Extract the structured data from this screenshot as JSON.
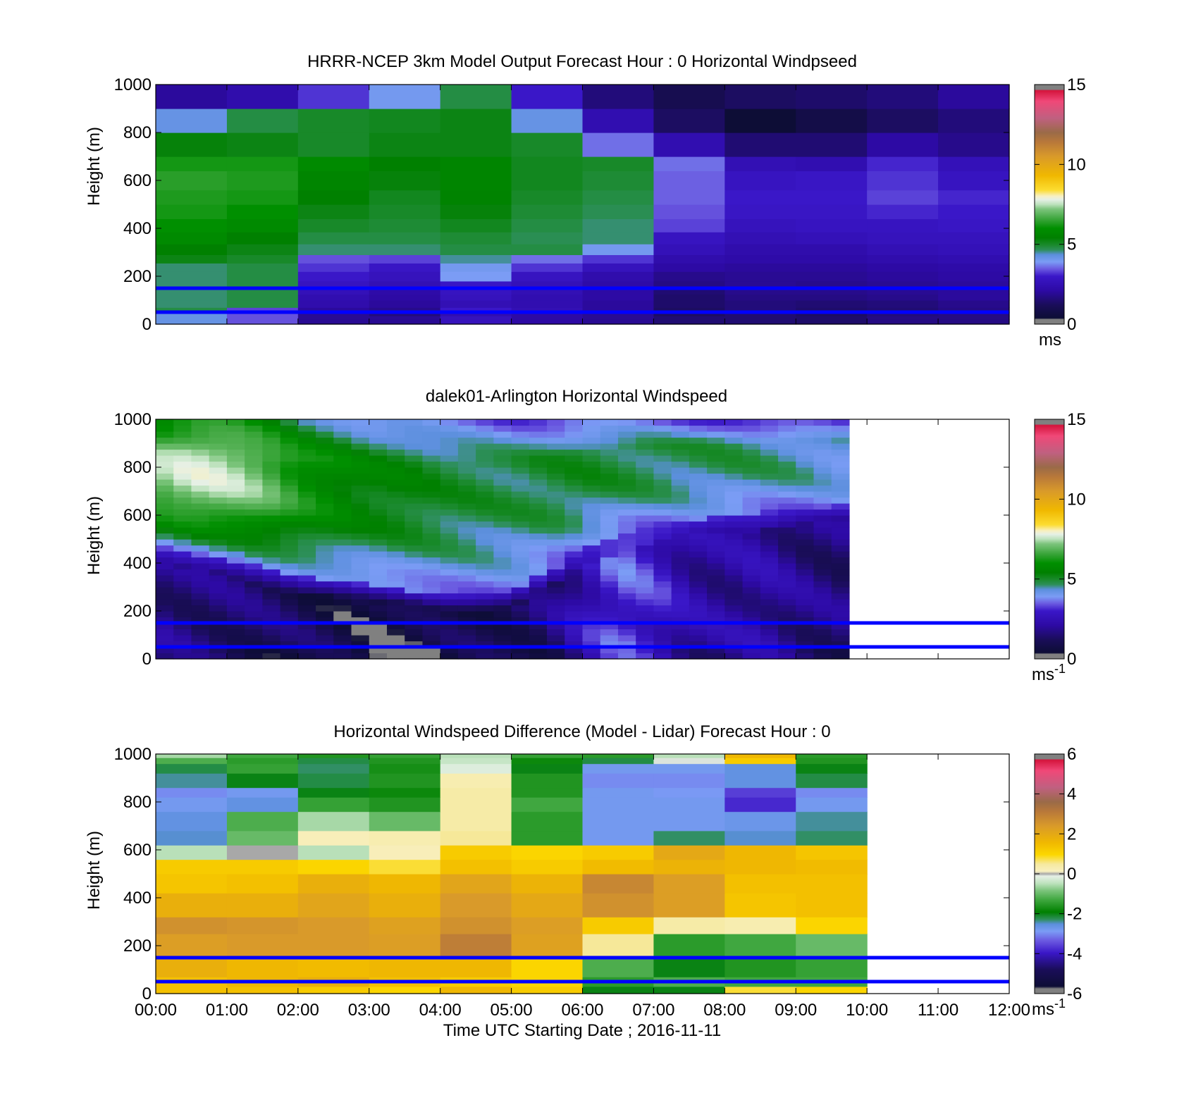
{
  "figure": {
    "xlabel": "Time UTC  Starting Date ; 2016-11-11",
    "x_ticks": [
      "00:00",
      "01:00",
      "02:00",
      "03:00",
      "04:00",
      "05:00",
      "06:00",
      "07:00",
      "08:00",
      "09:00",
      "10:00",
      "11:00",
      "12:00"
    ],
    "reference_line_color": "#0000ff",
    "reference_lines_height_m": [
      150,
      50
    ]
  },
  "speed_colorscale": {
    "stops": [
      [
        0.0,
        "#808080"
      ],
      [
        0.02,
        "#808080"
      ],
      [
        0.025,
        "#0d0d35"
      ],
      [
        0.08,
        "#1a0d59"
      ],
      [
        0.14,
        "#2d0aa4"
      ],
      [
        0.2,
        "#3a17c8"
      ],
      [
        0.23,
        "#6a58e0"
      ],
      [
        0.26,
        "#7b9cf5"
      ],
      [
        0.29,
        "#5b8fdc"
      ],
      [
        0.31,
        "#2d8f5a"
      ],
      [
        0.33,
        "#1b8a2e"
      ],
      [
        0.36,
        "#008000"
      ],
      [
        0.4,
        "#008f00"
      ],
      [
        0.44,
        "#3da63d"
      ],
      [
        0.48,
        "#7cc47c"
      ],
      [
        0.5,
        "#bde2bd"
      ],
      [
        0.52,
        "#e6f0e6"
      ],
      [
        0.535,
        "#f8f0c0"
      ],
      [
        0.56,
        "#fcdc30"
      ],
      [
        0.62,
        "#f0b800"
      ],
      [
        0.7,
        "#d99a2a"
      ],
      [
        0.76,
        "#b8783a"
      ],
      [
        0.8,
        "#9a6a48"
      ],
      [
        0.86,
        "#c06080"
      ],
      [
        0.93,
        "#f04878"
      ],
      [
        0.975,
        "#d4143c"
      ],
      [
        0.98,
        "#808080"
      ],
      [
        1.0,
        "#808080"
      ]
    ]
  },
  "diff_colorscale": {
    "stops": [
      [
        0.0,
        "#808080"
      ],
      [
        0.02,
        "#808080"
      ],
      [
        0.03,
        "#0d0d35"
      ],
      [
        0.1,
        "#1a0d59"
      ],
      [
        0.17,
        "#3a17c8"
      ],
      [
        0.22,
        "#6a58e0"
      ],
      [
        0.26,
        "#7b9cf5"
      ],
      [
        0.29,
        "#5b8fdc"
      ],
      [
        0.31,
        "#2d8f5a"
      ],
      [
        0.34,
        "#008000"
      ],
      [
        0.39,
        "#3da63d"
      ],
      [
        0.43,
        "#7cc47c"
      ],
      [
        0.46,
        "#bde2bd"
      ],
      [
        0.49,
        "#e6f0e6"
      ],
      [
        0.5,
        "#a8a8a8"
      ],
      [
        0.51,
        "#f8f0c0"
      ],
      [
        0.54,
        "#f6e9a0"
      ],
      [
        0.58,
        "#fcd700"
      ],
      [
        0.63,
        "#f0b800"
      ],
      [
        0.7,
        "#d99a2a"
      ],
      [
        0.76,
        "#b8783a"
      ],
      [
        0.8,
        "#9a6a48"
      ],
      [
        0.86,
        "#c06080"
      ],
      [
        0.93,
        "#f04878"
      ],
      [
        0.975,
        "#d4143c"
      ],
      [
        0.98,
        "#808080"
      ],
      [
        1.0,
        "#808080"
      ]
    ]
  },
  "chart_data": [
    {
      "type": "heatmap",
      "title": "HRRR-NCEP 3km Model Output   Forecast Hour : 0 Horizontal Windpseed",
      "ylabel": "Height (m)",
      "xlim": [
        "00:00",
        "12:00"
      ],
      "ylim": [
        0,
        1000
      ],
      "y_ticks": [
        0,
        200,
        400,
        600,
        800,
        1000
      ],
      "x_step_hours": 1,
      "x_starts": [
        "00:00",
        "01:00",
        "02:00",
        "03:00",
        "04:00",
        "05:00",
        "06:00",
        "07:00",
        "08:00",
        "09:00",
        "10:00",
        "11:00"
      ],
      "height_edges_m": [
        0,
        20,
        35,
        50,
        70,
        100,
        125,
        150,
        180,
        220,
        255,
        290,
        335,
        385,
        440,
        500,
        560,
        640,
        700,
        800,
        900,
        1000
      ],
      "values_ms": [
        [
          4.2,
          3.4,
          1.9,
          1.9,
          2.7,
          2.1,
          1.9,
          1.5,
          1.5,
          1.4,
          1.7,
          1.7
        ],
        [
          4.2,
          3.4,
          1.9,
          1.9,
          2.7,
          2.1,
          1.9,
          1.5,
          1.5,
          1.4,
          1.7,
          1.7
        ],
        [
          4.2,
          3.4,
          1.9,
          1.6,
          2.4,
          2.1,
          1.9,
          1.3,
          1.5,
          1.3,
          1.6,
          1.7
        ],
        [
          4.8,
          3.3,
          2.0,
          1.8,
          3.0,
          2.5,
          2.0,
          1.3,
          1.6,
          1.4,
          1.5,
          1.7
        ],
        [
          4.6,
          4.8,
          2.3,
          2.0,
          2.5,
          2.4,
          2.0,
          1.4,
          1.6,
          1.5,
          1.6,
          1.8
        ],
        [
          4.6,
          4.8,
          2.4,
          2.1,
          2.7,
          2.4,
          2.1,
          1.4,
          1.7,
          1.7,
          1.8,
          2.0
        ],
        [
          4.6,
          4.8,
          2.6,
          2.2,
          2.8,
          2.5,
          2.1,
          1.5,
          1.8,
          1.8,
          1.9,
          2.0
        ],
        [
          4.6,
          4.8,
          2.8,
          2.5,
          2.9,
          2.6,
          2.2,
          1.7,
          1.9,
          1.8,
          1.9,
          2.0
        ],
        [
          4.6,
          4.8,
          3.0,
          2.7,
          3.9,
          2.8,
          2.3,
          1.8,
          1.9,
          1.9,
          2.0,
          2.1
        ],
        [
          4.6,
          4.8,
          3.2,
          2.9,
          4.0,
          3.2,
          2.7,
          2.1,
          2.0,
          2.0,
          2.1,
          2.2
        ],
        [
          5.2,
          5.0,
          3.4,
          3.3,
          4.5,
          3.6,
          3.2,
          2.3,
          2.2,
          2.2,
          2.3,
          2.4
        ],
        [
          5.4,
          5.2,
          4.6,
          4.6,
          4.8,
          4.8,
          4.0,
          2.6,
          2.3,
          2.3,
          2.5,
          2.6
        ],
        [
          5.8,
          5.4,
          4.8,
          4.8,
          4.9,
          4.7,
          4.6,
          2.8,
          2.5,
          2.6,
          2.7,
          2.7
        ],
        [
          6.0,
          5.8,
          5.0,
          4.9,
          5.1,
          4.8,
          4.6,
          3.3,
          2.7,
          2.8,
          2.8,
          2.9
        ],
        [
          6.2,
          6.0,
          5.2,
          5.0,
          5.3,
          4.9,
          4.7,
          3.4,
          2.9,
          2.9,
          3.1,
          3.0
        ],
        [
          6.3,
          6.2,
          5.4,
          5.1,
          5.5,
          5.0,
          4.8,
          3.5,
          3.0,
          3.0,
          3.3,
          3.1
        ],
        [
          6.4,
          6.3,
          5.6,
          5.3,
          5.6,
          5.1,
          4.9,
          3.5,
          2.8,
          2.9,
          3.2,
          2.8
        ],
        [
          6.2,
          6.2,
          5.8,
          5.4,
          5.6,
          5.1,
          5.0,
          3.6,
          2.5,
          2.4,
          3.1,
          2.6
        ],
        [
          5.3,
          5.2,
          5.0,
          5.2,
          5.2,
          5.0,
          3.6,
          2.4,
          1.5,
          1.5,
          2.1,
          1.8
        ],
        [
          4.2,
          4.8,
          5.0,
          5.1,
          5.2,
          4.2,
          2.4,
          1.3,
          0.4,
          0.8,
          1.3,
          1.6
        ],
        [
          2.0,
          2.3,
          3.2,
          4.0,
          4.8,
          3.0,
          1.6,
          1.0,
          1.3,
          1.4,
          1.6,
          2.0
        ]
      ],
      "colorbar": {
        "range": [
          0,
          15
        ],
        "ticks": [
          0,
          5,
          10,
          15
        ],
        "unit": "ms",
        "unit_sup": ""
      }
    },
    {
      "type": "heatmap",
      "title": "dalek01-Arlington  Horizontal Windspeed",
      "ylabel": "Height (m)",
      "xlim": [
        "00:00",
        "12:00"
      ],
      "ylim": [
        0,
        1000
      ],
      "y_ticks": [
        0,
        200,
        400,
        600,
        800,
        1000
      ],
      "data_extent": [
        "00:00",
        "09:45"
      ],
      "x_step_hours": 0.25,
      "profile_anchors": {
        "hours": [
          0,
          0.5,
          1,
          1.5,
          2,
          2.5,
          3,
          3.5,
          4,
          4.5,
          5,
          5.5,
          6,
          6.5,
          7,
          7.5,
          8,
          8.5,
          9,
          9.5
        ],
        "jet_bottom_m": [
          470,
          440,
          420,
          380,
          345,
          330,
          310,
          290,
          270,
          275,
          290,
          360,
          470,
          520,
          560,
          580,
          600,
          610,
          630,
          640
        ],
        "lower_layer_ms": [
          1.8,
          1.6,
          1.5,
          1.3,
          1.1,
          0.9,
          0.7,
          0.6,
          0.8,
          1.0,
          1.2,
          1.4,
          2.5,
          3.4,
          3.0,
          2.2,
          2.0,
          2.2,
          1.8,
          1.6
        ],
        "jet_core_ms": [
          7.2,
          7.6,
          7.5,
          7.0,
          6.2,
          5.8,
          5.4,
          5.3,
          5.0,
          4.9,
          4.8,
          4.9,
          5.0,
          4.9,
          4.8,
          4.7,
          4.7,
          4.6,
          4.5,
          4.3
        ]
      },
      "colorbar": {
        "range": [
          0,
          15
        ],
        "ticks": [
          0,
          5,
          10,
          15
        ],
        "unit": "ms",
        "unit_sup": "-1"
      }
    },
    {
      "type": "heatmap",
      "title": "Horizontal Windspeed Difference (Model - Lidar) Forecast Hour : 0",
      "ylabel": "Height (m)",
      "xlim": [
        "00:00",
        "12:00"
      ],
      "ylim": [
        0,
        1000
      ],
      "y_ticks": [
        0,
        200,
        400,
        600,
        800,
        1000
      ],
      "data_extent": [
        "00:00",
        "10:00"
      ],
      "x_step_hours": 1,
      "x_starts": [
        "00:00",
        "01:00",
        "02:00",
        "03:00",
        "04:00",
        "05:00",
        "06:00",
        "07:00",
        "08:00",
        "09:00"
      ],
      "height_edges_m": [
        0,
        30,
        70,
        150,
        250,
        320,
        420,
        500,
        560,
        620,
        680,
        760,
        820,
        860,
        920,
        960,
        985,
        1000
      ],
      "values_ms": [
        [
          1.4,
          1.4,
          1.2,
          1.0,
          1.6,
          1.2,
          -2.0,
          -2.0,
          0.8,
          1.0
        ],
        [
          1.4,
          1.6,
          1.8,
          1.4,
          1.2,
          1.0,
          -1.5,
          -1.2,
          -1.3,
          -1.3
        ],
        [
          1.8,
          1.6,
          1.5,
          1.6,
          1.6,
          1.0,
          -1.2,
          -2.0,
          -1.6,
          -1.4
        ],
        [
          2.3,
          2.4,
          2.4,
          2.3,
          3.0,
          2.2,
          0.5,
          -1.5,
          -1.3,
          -1.0
        ],
        [
          2.6,
          2.5,
          2.4,
          2.2,
          2.6,
          2.3,
          1.2,
          0.4,
          0.3,
          1.0
        ],
        [
          1.8,
          1.8,
          2.1,
          1.8,
          2.4,
          2.0,
          2.6,
          2.3,
          1.3,
          1.4
        ],
        [
          1.3,
          1.4,
          1.8,
          1.6,
          2.1,
          1.7,
          2.8,
          2.3,
          1.4,
          1.4
        ],
        [
          1.2,
          1.2,
          1.0,
          0.8,
          1.4,
          1.2,
          1.5,
          1.7,
          1.6,
          1.5
        ],
        [
          -0.5,
          0.0,
          -0.5,
          0.2,
          1.2,
          1.0,
          1.2,
          2.0,
          1.6,
          1.3
        ],
        [
          -2.5,
          -1.0,
          0.2,
          0.3,
          0.5,
          -1.5,
          -2.8,
          -2.3,
          -2.5,
          -2.3
        ],
        [
          -2.6,
          -1.2,
          -0.6,
          -1.0,
          0.4,
          -1.5,
          -2.8,
          -2.8,
          -2.7,
          -2.4
        ],
        [
          -2.8,
          -2.6,
          -1.4,
          -1.6,
          0.4,
          -1.3,
          -2.8,
          -2.8,
          -3.8,
          -2.8
        ],
        [
          -3.0,
          -2.8,
          -2.0,
          -1.8,
          0.4,
          -1.6,
          -2.8,
          -2.9,
          -3.6,
          -3.0
        ],
        [
          -2.4,
          -2.0,
          -2.2,
          -1.6,
          0.3,
          -1.6,
          -3.0,
          -3.0,
          -2.6,
          -2.2
        ],
        [
          -2.2,
          -1.4,
          -2.3,
          -1.7,
          -0.2,
          -2.0,
          -2.8,
          -2.8,
          -2.6,
          -2.0
        ],
        [
          -1.2,
          -1.5,
          -2.2,
          -1.6,
          -0.4,
          -1.8,
          -2.2,
          -0.1,
          1.2,
          -1.6
        ],
        [
          -0.6,
          -1.3,
          -1.6,
          -1.4,
          -0.5,
          -1.4,
          -1.5,
          -0.5,
          1.6,
          -1.5
        ]
      ],
      "colorbar": {
        "range": [
          -6,
          6
        ],
        "ticks": [
          -6,
          -4,
          -2,
          0,
          2,
          4,
          6
        ],
        "unit": "ms",
        "unit_sup": "-1"
      }
    }
  ]
}
